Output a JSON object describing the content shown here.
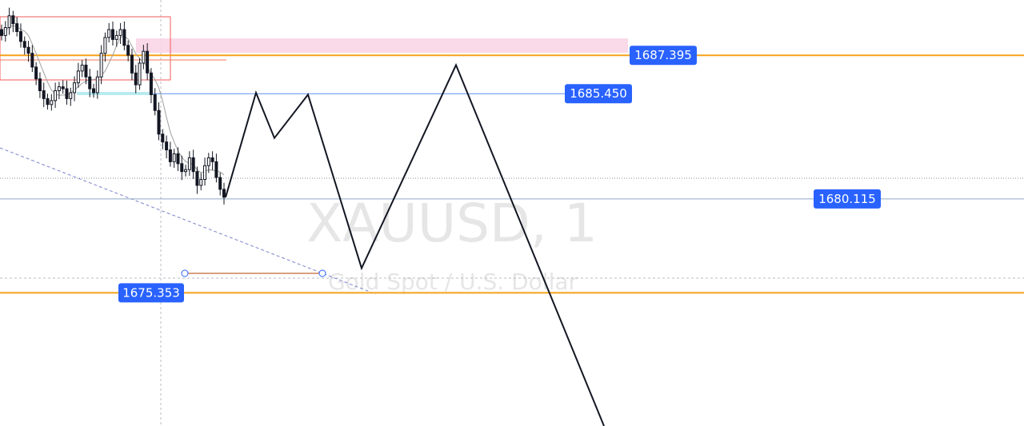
{
  "chart_data": {
    "type": "line",
    "symbol": "XAUUSD",
    "interval": "1",
    "description": "Gold Spot / U.S. Dollar",
    "ylim": [
      1668.6,
      1690.2
    ],
    "price_levels": [
      {
        "value": 1687.395,
        "label": "1687.395",
        "line_color": "#f7a21b"
      },
      {
        "value": 1685.45,
        "label": "1685.450",
        "line_color": "#5b8ff0"
      },
      {
        "value": 1680.115,
        "label": "1680.115",
        "line_color": "#8fa8c8"
      },
      {
        "value": 1675.353,
        "label": "1675.353",
        "line_color": "#f7a21b"
      }
    ],
    "supply_zone": {
      "from": 1686.9,
      "to": 1687.55,
      "color": "#f9d2e4"
    },
    "projected_path": [
      1680.2,
      1685.5,
      1683.2,
      1685.4,
      1676.6,
      1686.9,
      1668.6
    ],
    "candles_close": [
      1688.4,
      1688.8,
      1689.4,
      1689.0,
      1688.6,
      1688.1,
      1687.8,
      1687.5,
      1686.8,
      1686.2,
      1685.6,
      1685.2,
      1684.9,
      1685.1,
      1685.6,
      1685.8,
      1685.7,
      1685.2,
      1685.5,
      1686.0,
      1686.6,
      1686.9,
      1686.3,
      1685.7,
      1685.5,
      1686.3,
      1687.5,
      1688.3,
      1688.7,
      1688.2,
      1688.4,
      1688.7,
      1687.9,
      1687.4,
      1686.5,
      1685.9,
      1687.0,
      1687.6,
      1686.5,
      1685.4,
      1684.6,
      1683.4,
      1683.0,
      1682.6,
      1682.0,
      1682.4,
      1681.9,
      1681.5,
      1681.6,
      1682.2,
      1681.5,
      1680.8,
      1681.1,
      1681.8,
      1682.2,
      1682.0,
      1681.2,
      1680.6,
      1680.2
    ]
  },
  "colors": {
    "label_bg": "#2962ff",
    "candle": "#131722",
    "moving_average": "#a0a0a0",
    "box_border": "#f05a5a",
    "path": "#131722"
  }
}
